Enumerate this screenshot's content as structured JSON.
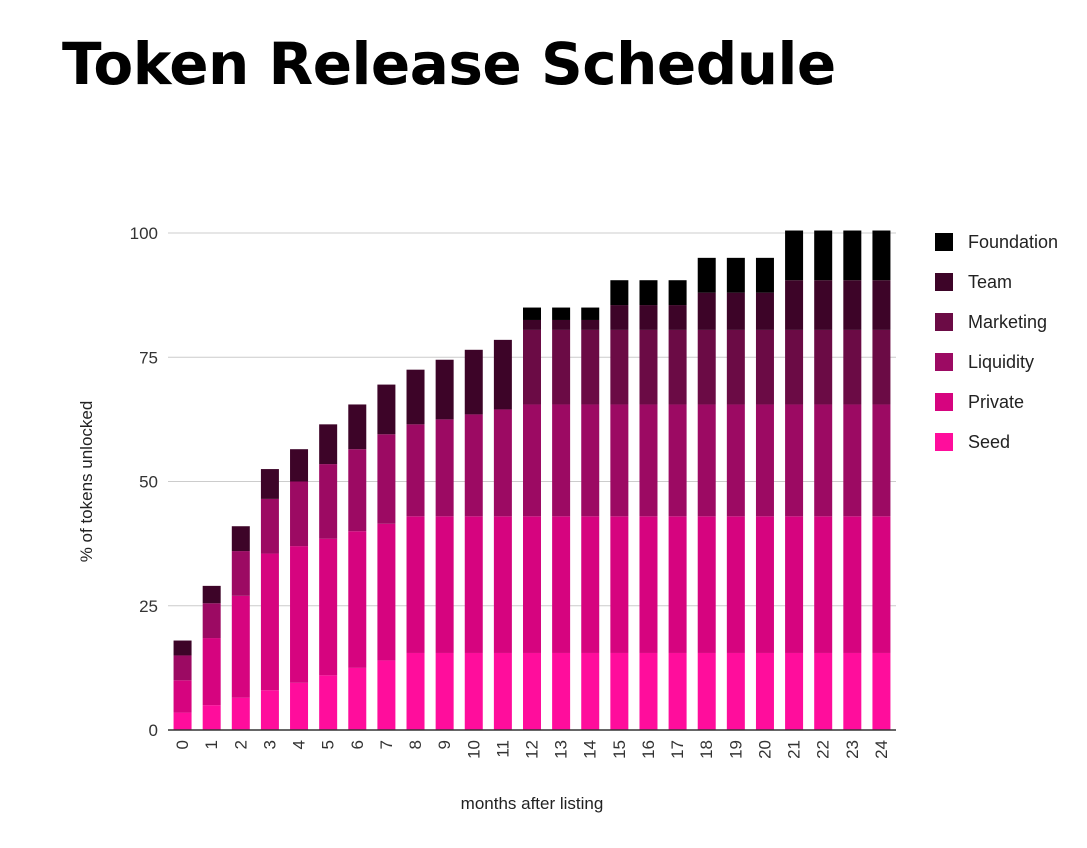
{
  "title": "Token Release Schedule",
  "chart_data": {
    "type": "bar",
    "stacked": true,
    "title": "Token Release Schedule",
    "xlabel": "months after listing",
    "ylabel": "% of tokens unlocked",
    "ylim": [
      0,
      100
    ],
    "yticks": [
      0,
      25,
      50,
      75,
      100
    ],
    "grid": true,
    "legend_position": "right",
    "categories": [
      "0",
      "1",
      "2",
      "3",
      "4",
      "5",
      "6",
      "7",
      "8",
      "9",
      "10",
      "11",
      "12",
      "13",
      "14",
      "15",
      "16",
      "17",
      "18",
      "19",
      "20",
      "21",
      "22",
      "23",
      "24"
    ],
    "series": [
      {
        "name": "Seed",
        "color": "#ff0d9c",
        "values": [
          3.5,
          5,
          6.5,
          8,
          9.5,
          11,
          12.5,
          14,
          15.5,
          15.5,
          15.5,
          15.5,
          15.5,
          15.5,
          15.5,
          15.5,
          15.5,
          15.5,
          15.5,
          15.5,
          15.5,
          15.5,
          15.5,
          15.5,
          15.5
        ]
      },
      {
        "name": "Private",
        "color": "#d6047f",
        "values": [
          6.5,
          13.5,
          20.5,
          27.5,
          27.5,
          27.5,
          27.5,
          27.5,
          27.5,
          27.5,
          27.5,
          27.5,
          27.5,
          27.5,
          27.5,
          27.5,
          27.5,
          27.5,
          27.5,
          27.5,
          27.5,
          27.5,
          27.5,
          27.5,
          27.5
        ]
      },
      {
        "name": "Liquidity",
        "color": "#9c0a63",
        "values": [
          5,
          7,
          9,
          11,
          13,
          15,
          16.5,
          18,
          18.5,
          19.5,
          20.5,
          21.5,
          22.5,
          22.5,
          22.5,
          22.5,
          22.5,
          22.5,
          22.5,
          22.5,
          22.5,
          22.5,
          22.5,
          22.5,
          22.5
        ]
      },
      {
        "name": "Marketing",
        "color": "#6b0b45",
        "values": [
          0,
          0,
          0,
          0,
          0,
          0,
          0,
          0,
          0,
          0,
          0,
          0,
          15,
          15,
          15,
          15,
          15,
          15,
          15,
          15,
          15,
          15,
          15,
          15,
          15
        ]
      },
      {
        "name": "Team",
        "color": "#3d0428",
        "values": [
          3,
          3.5,
          5,
          6,
          6.5,
          8,
          9,
          10,
          11,
          12,
          13,
          14,
          2,
          2,
          2,
          5,
          5,
          5,
          7.5,
          7.5,
          7.5,
          10,
          10,
          10,
          10
        ]
      },
      {
        "name": "Foundation",
        "color": "#000000",
        "values": [
          0,
          0,
          0,
          0,
          0,
          0,
          0,
          0,
          0,
          0,
          0,
          0,
          2.5,
          2.5,
          2.5,
          5,
          5,
          5,
          7,
          7,
          7,
          10,
          10,
          10,
          10
        ]
      }
    ]
  },
  "legend_order": [
    "Foundation",
    "Team",
    "Marketing",
    "Liquidity",
    "Private",
    "Seed"
  ]
}
